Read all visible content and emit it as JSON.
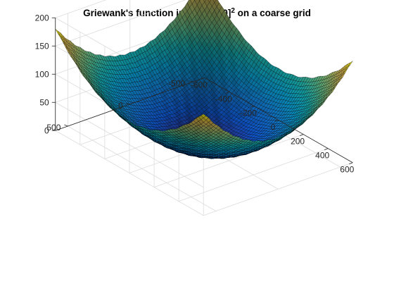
{
  "chart_data": {
    "type": "surface",
    "title": "Griewank's function in [-600,600]",
    "title_superscript": "2",
    "title_suffix": " on a coarse grid",
    "xlabel": "",
    "ylabel": "",
    "zlabel": "",
    "function": "1 + (x^2 + y^2)/4000 - cos(x)*cos(y/sqrt(2))",
    "x_range": [
      -600,
      600
    ],
    "y_range": [
      -600,
      600
    ],
    "z_range": [
      0,
      200
    ],
    "grid_steps": 60,
    "sample_values": [
      {
        "x": -600,
        "y": -600,
        "z": 180.7
      },
      {
        "x": 600,
        "y": -600,
        "z": 181
      },
      {
        "x": -600,
        "y": 600,
        "z": 181
      },
      {
        "x": 600,
        "y": 600,
        "z": 181
      },
      {
        "x": 0,
        "y": 0,
        "z": 0
      },
      {
        "x": 0,
        "y": 600,
        "z": 90.5
      },
      {
        "x": 600,
        "y": 0,
        "z": 91
      }
    ],
    "x_ticks": [
      "-600",
      "-400",
      "-200",
      "0",
      "200",
      "400",
      "600"
    ],
    "x_tick_values": [
      -600,
      -400,
      -200,
      0,
      200,
      400,
      600
    ],
    "y_ticks": [
      "-500",
      "0",
      "500"
    ],
    "y_tick_values": [
      -500,
      0,
      500
    ],
    "z_ticks": [
      "0",
      "50",
      "100",
      "150",
      "200"
    ],
    "z_tick_values": [
      0,
      50,
      100,
      150,
      200
    ],
    "colormap": "parula",
    "edge_color": "#000000",
    "grid": true,
    "box": "partial"
  }
}
